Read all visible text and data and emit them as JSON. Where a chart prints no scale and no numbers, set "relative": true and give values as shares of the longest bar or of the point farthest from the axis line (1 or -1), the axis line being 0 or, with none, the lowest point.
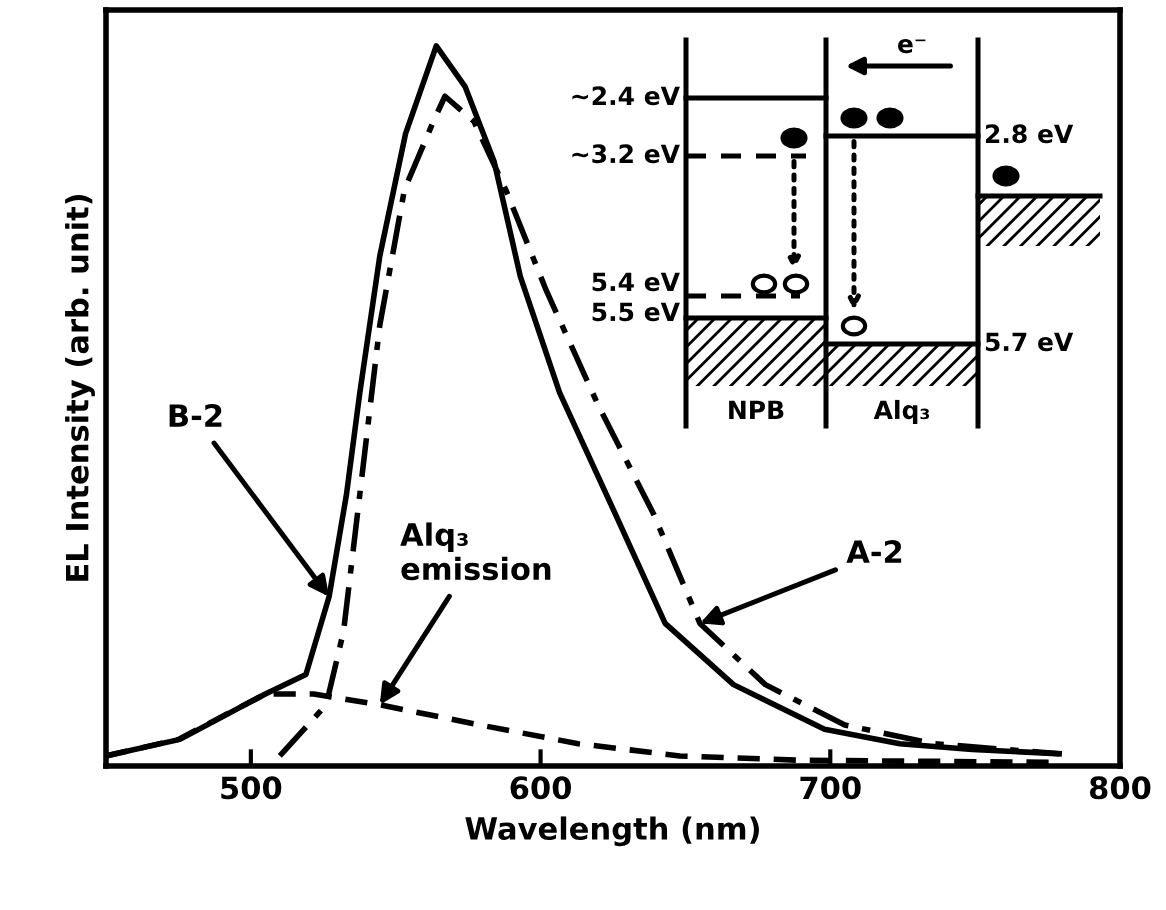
{
  "chart_data": {
    "type": "line",
    "relative": true,
    "xlabel": "Wavelength (nm)",
    "ylabel": "EL Intensity (arb. unit)",
    "xlim": [
      450,
      800
    ],
    "xticks": [
      500,
      600,
      700,
      800
    ],
    "grid": false,
    "marker": "none",
    "series": [
      {
        "color": "#000000",
        "line_style": "solid",
        "x": [
          450,
          475.5,
          505,
          519,
          527,
          533,
          537.6,
          544.5,
          553.4,
          564,
          574,
          584,
          593,
          606.6,
          625,
          643,
          666.6,
          698,
          724,
          749,
          779
        ],
        "values": [
          0.014,
          0.037,
          0.1,
          0.127,
          0.235,
          0.377,
          0.518,
          0.708,
          0.878,
          1.0,
          0.943,
          0.839,
          0.68,
          0.518,
          0.357,
          0.198,
          0.113,
          0.051,
          0.031,
          0.023,
          0.017
        ]
      },
      {
        "color": "#000000",
        "line_style": "dashdot",
        "x": [
          510,
          526,
          532,
          537.6,
          544.5,
          553,
          563,
          567,
          577,
          588,
          602,
          620,
          639,
          655,
          677.6,
          705,
          735.5,
          779
        ],
        "values": [
          0.014,
          0.085,
          0.187,
          0.377,
          0.612,
          0.8,
          0.895,
          0.93,
          0.895,
          0.8,
          0.66,
          0.5,
          0.35,
          0.198,
          0.113,
          0.057,
          0.031,
          0.017
        ]
      },
      {
        "color": "#000000",
        "line_style": "dashed",
        "x": [
          450,
          475,
          505,
          521.7,
          544.5,
          579,
          613,
          648,
          689,
          780
        ],
        "values": [
          0.014,
          0.037,
          0.1,
          0.1,
          0.085,
          0.057,
          0.031,
          0.014,
          0.008,
          0.005
        ]
      }
    ],
    "annotations": [
      {
        "text": "B-2",
        "x": 527,
        "y": 0.235
      },
      {
        "text": "Alq₃\nemission",
        "x": 544.5,
        "y": 0.085
      },
      {
        "text": "A-2",
        "x": 655,
        "y": 0.198
      },
      "~2.4 eV",
      "~3.2 eV",
      "5.4 eV",
      "5.5 eV",
      "2.8 eV",
      "5.7 eV",
      "NPB",
      "Alq₃",
      "e⁻"
    ]
  }
}
